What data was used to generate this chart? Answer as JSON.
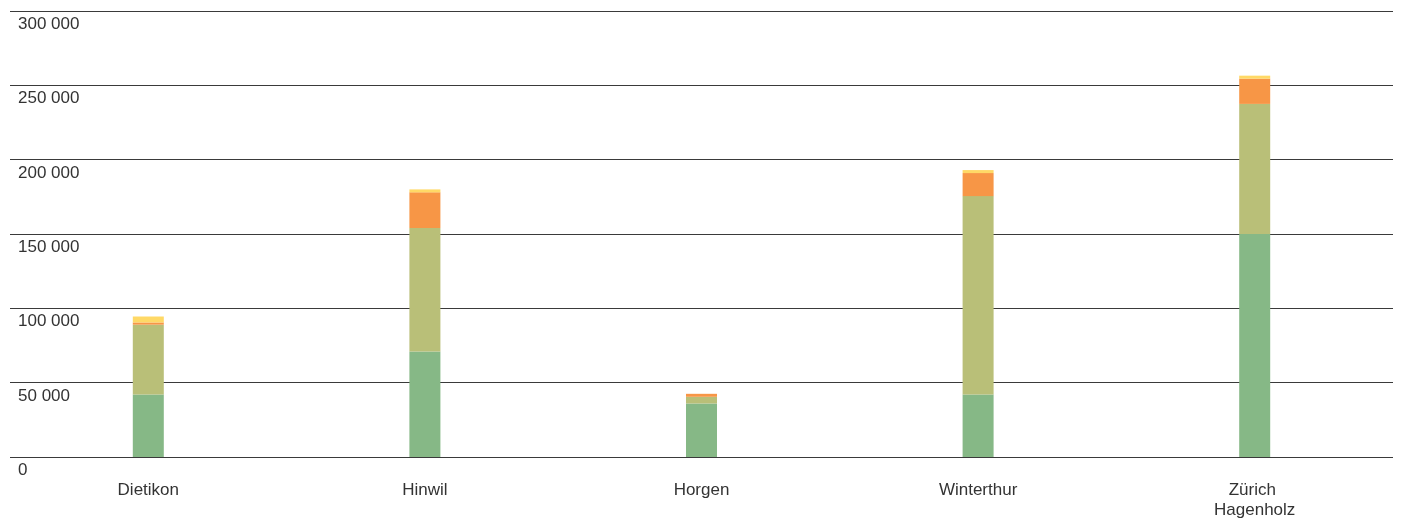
{
  "chart_data": {
    "type": "bar",
    "stacked": true,
    "categories": [
      "Dietikon",
      "Hinwil",
      "Horgen",
      "Winterthur",
      "Zürich Hagenholz"
    ],
    "series": [
      {
        "color": "#86b886",
        "values": [
          42000,
          71000,
          36000,
          42000,
          150000
        ]
      },
      {
        "color": "#b9bf78",
        "values": [
          47000,
          83000,
          4500,
          133500,
          87500
        ]
      },
      {
        "color": "#f79646",
        "values": [
          1500,
          24000,
          2000,
          15500,
          17000
        ]
      },
      {
        "color": "#ffd966",
        "values": [
          4000,
          2000,
          0,
          2000,
          2000
        ]
      }
    ],
    "ylim": [
      0,
      300000
    ],
    "yticks": [
      {
        "value": 0,
        "label": "0"
      },
      {
        "value": 50000,
        "label": "50 000"
      },
      {
        "value": 100000,
        "label": "100 000"
      },
      {
        "value": 150000,
        "label": "150 000"
      },
      {
        "value": 200000,
        "label": "200 000"
      },
      {
        "value": 250000,
        "label": "250 000"
      },
      {
        "value": 300000,
        "label": "300 000"
      }
    ],
    "grid": "y"
  }
}
